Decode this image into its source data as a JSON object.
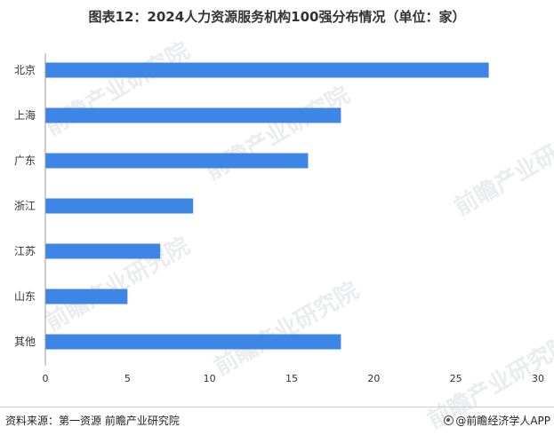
{
  "title": "图表12：2024人力资源服务机构100强分布情况（单位：家）",
  "colors": {
    "bar": "#3d86e6",
    "axis": "#999999",
    "text": "#333333"
  },
  "watermark": {
    "text": "前瞻产业研究院"
  },
  "footer": {
    "source": "资料来源：第一资源 前瞻产业研究院",
    "brand": "@前瞻经济学人APP",
    "brand_icon": "qianzhan-logo-icon"
  },
  "chart_data": {
    "type": "bar",
    "orientation": "horizontal",
    "categories": [
      "北京",
      "上海",
      "广东",
      "浙江",
      "江苏",
      "山东",
      "其他"
    ],
    "values": [
      27,
      18,
      16,
      9,
      7,
      5,
      18
    ],
    "xlim": [
      0,
      30
    ],
    "xticks": [
      0,
      5,
      10,
      15,
      20,
      25,
      30
    ],
    "xlabel": "",
    "ylabel": "",
    "grid": false,
    "legend": "none"
  }
}
